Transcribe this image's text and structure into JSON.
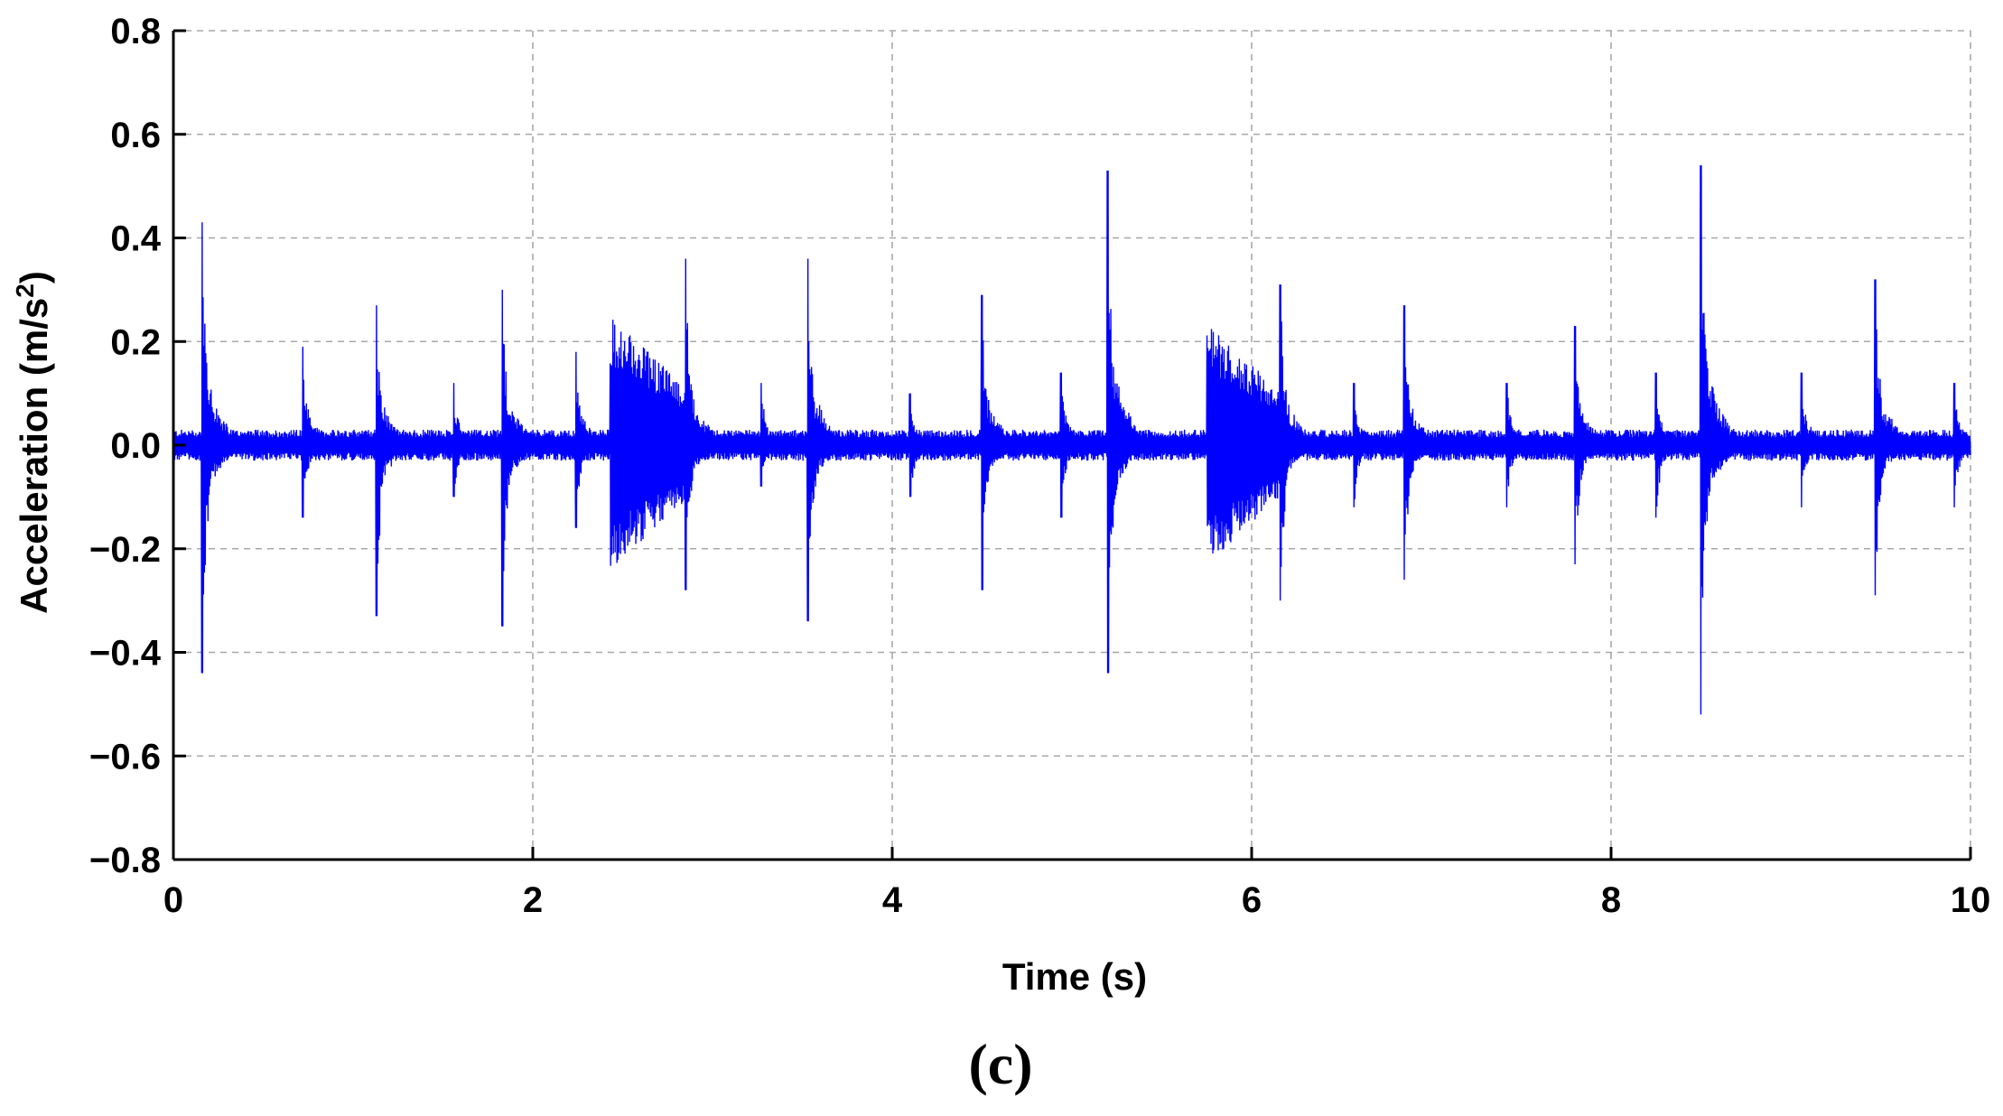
{
  "chart_data": {
    "type": "line",
    "xlabel": "Time (s)",
    "ylabel_main": "Acceleration (m/s",
    "ylabel_sup": "2",
    "ylabel_close": ")",
    "panel_label": "(c)",
    "xlim": [
      0,
      10
    ],
    "ylim": [
      -0.8,
      0.8
    ],
    "x_ticks": [
      0,
      2,
      4,
      6,
      8,
      10
    ],
    "x_tick_labels": [
      "0",
      "2",
      "4",
      "6",
      "8",
      "10"
    ],
    "y_ticks": [
      0.8,
      0.6,
      0.4,
      0.2,
      0.0,
      -0.2,
      -0.4,
      -0.6,
      -0.8
    ],
    "y_tick_labels": [
      "0.8",
      "0.6",
      "0.4",
      "0.2",
      "0.0",
      "−0.2",
      "−0.4",
      "−0.6",
      "−0.8"
    ],
    "grid": true,
    "line_color": "#0000ff",
    "baseline_noise_amplitude": 0.025,
    "impulses": [
      {
        "t": 0.16,
        "max": 0.43,
        "min": -0.44
      },
      {
        "t": 0.72,
        "max": 0.19,
        "min": -0.14
      },
      {
        "t": 1.13,
        "max": 0.27,
        "min": -0.33
      },
      {
        "t": 1.56,
        "max": 0.12,
        "min": -0.1
      },
      {
        "t": 1.83,
        "max": 0.3,
        "min": -0.35
      },
      {
        "t": 2.24,
        "max": 0.18,
        "min": -0.16
      },
      {
        "t": 2.85,
        "max": 0.36,
        "min": -0.28
      },
      {
        "t": 3.27,
        "max": 0.12,
        "min": -0.08
      },
      {
        "t": 3.53,
        "max": 0.36,
        "min": -0.34
      },
      {
        "t": 4.1,
        "max": 0.1,
        "min": -0.1
      },
      {
        "t": 4.5,
        "max": 0.29,
        "min": -0.28
      },
      {
        "t": 4.94,
        "max": 0.14,
        "min": -0.14
      },
      {
        "t": 5.2,
        "max": 0.53,
        "min": -0.44
      },
      {
        "t": 6.16,
        "max": 0.31,
        "min": -0.3
      },
      {
        "t": 6.57,
        "max": 0.12,
        "min": -0.12
      },
      {
        "t": 6.85,
        "max": 0.27,
        "min": -0.26
      },
      {
        "t": 7.42,
        "max": 0.12,
        "min": -0.12
      },
      {
        "t": 7.8,
        "max": 0.23,
        "min": -0.23
      },
      {
        "t": 8.25,
        "max": 0.14,
        "min": -0.14
      },
      {
        "t": 8.5,
        "max": 0.54,
        "min": -0.52
      },
      {
        "t": 9.06,
        "max": 0.14,
        "min": -0.12
      },
      {
        "t": 9.47,
        "max": 0.32,
        "min": -0.29
      },
      {
        "t": 9.91,
        "max": 0.12,
        "min": -0.12
      }
    ],
    "bursts": [
      {
        "start": 2.43,
        "end": 2.85,
        "max": 0.25,
        "min": -0.24
      },
      {
        "start": 5.75,
        "end": 6.15,
        "max": 0.24,
        "min": -0.23
      }
    ]
  }
}
